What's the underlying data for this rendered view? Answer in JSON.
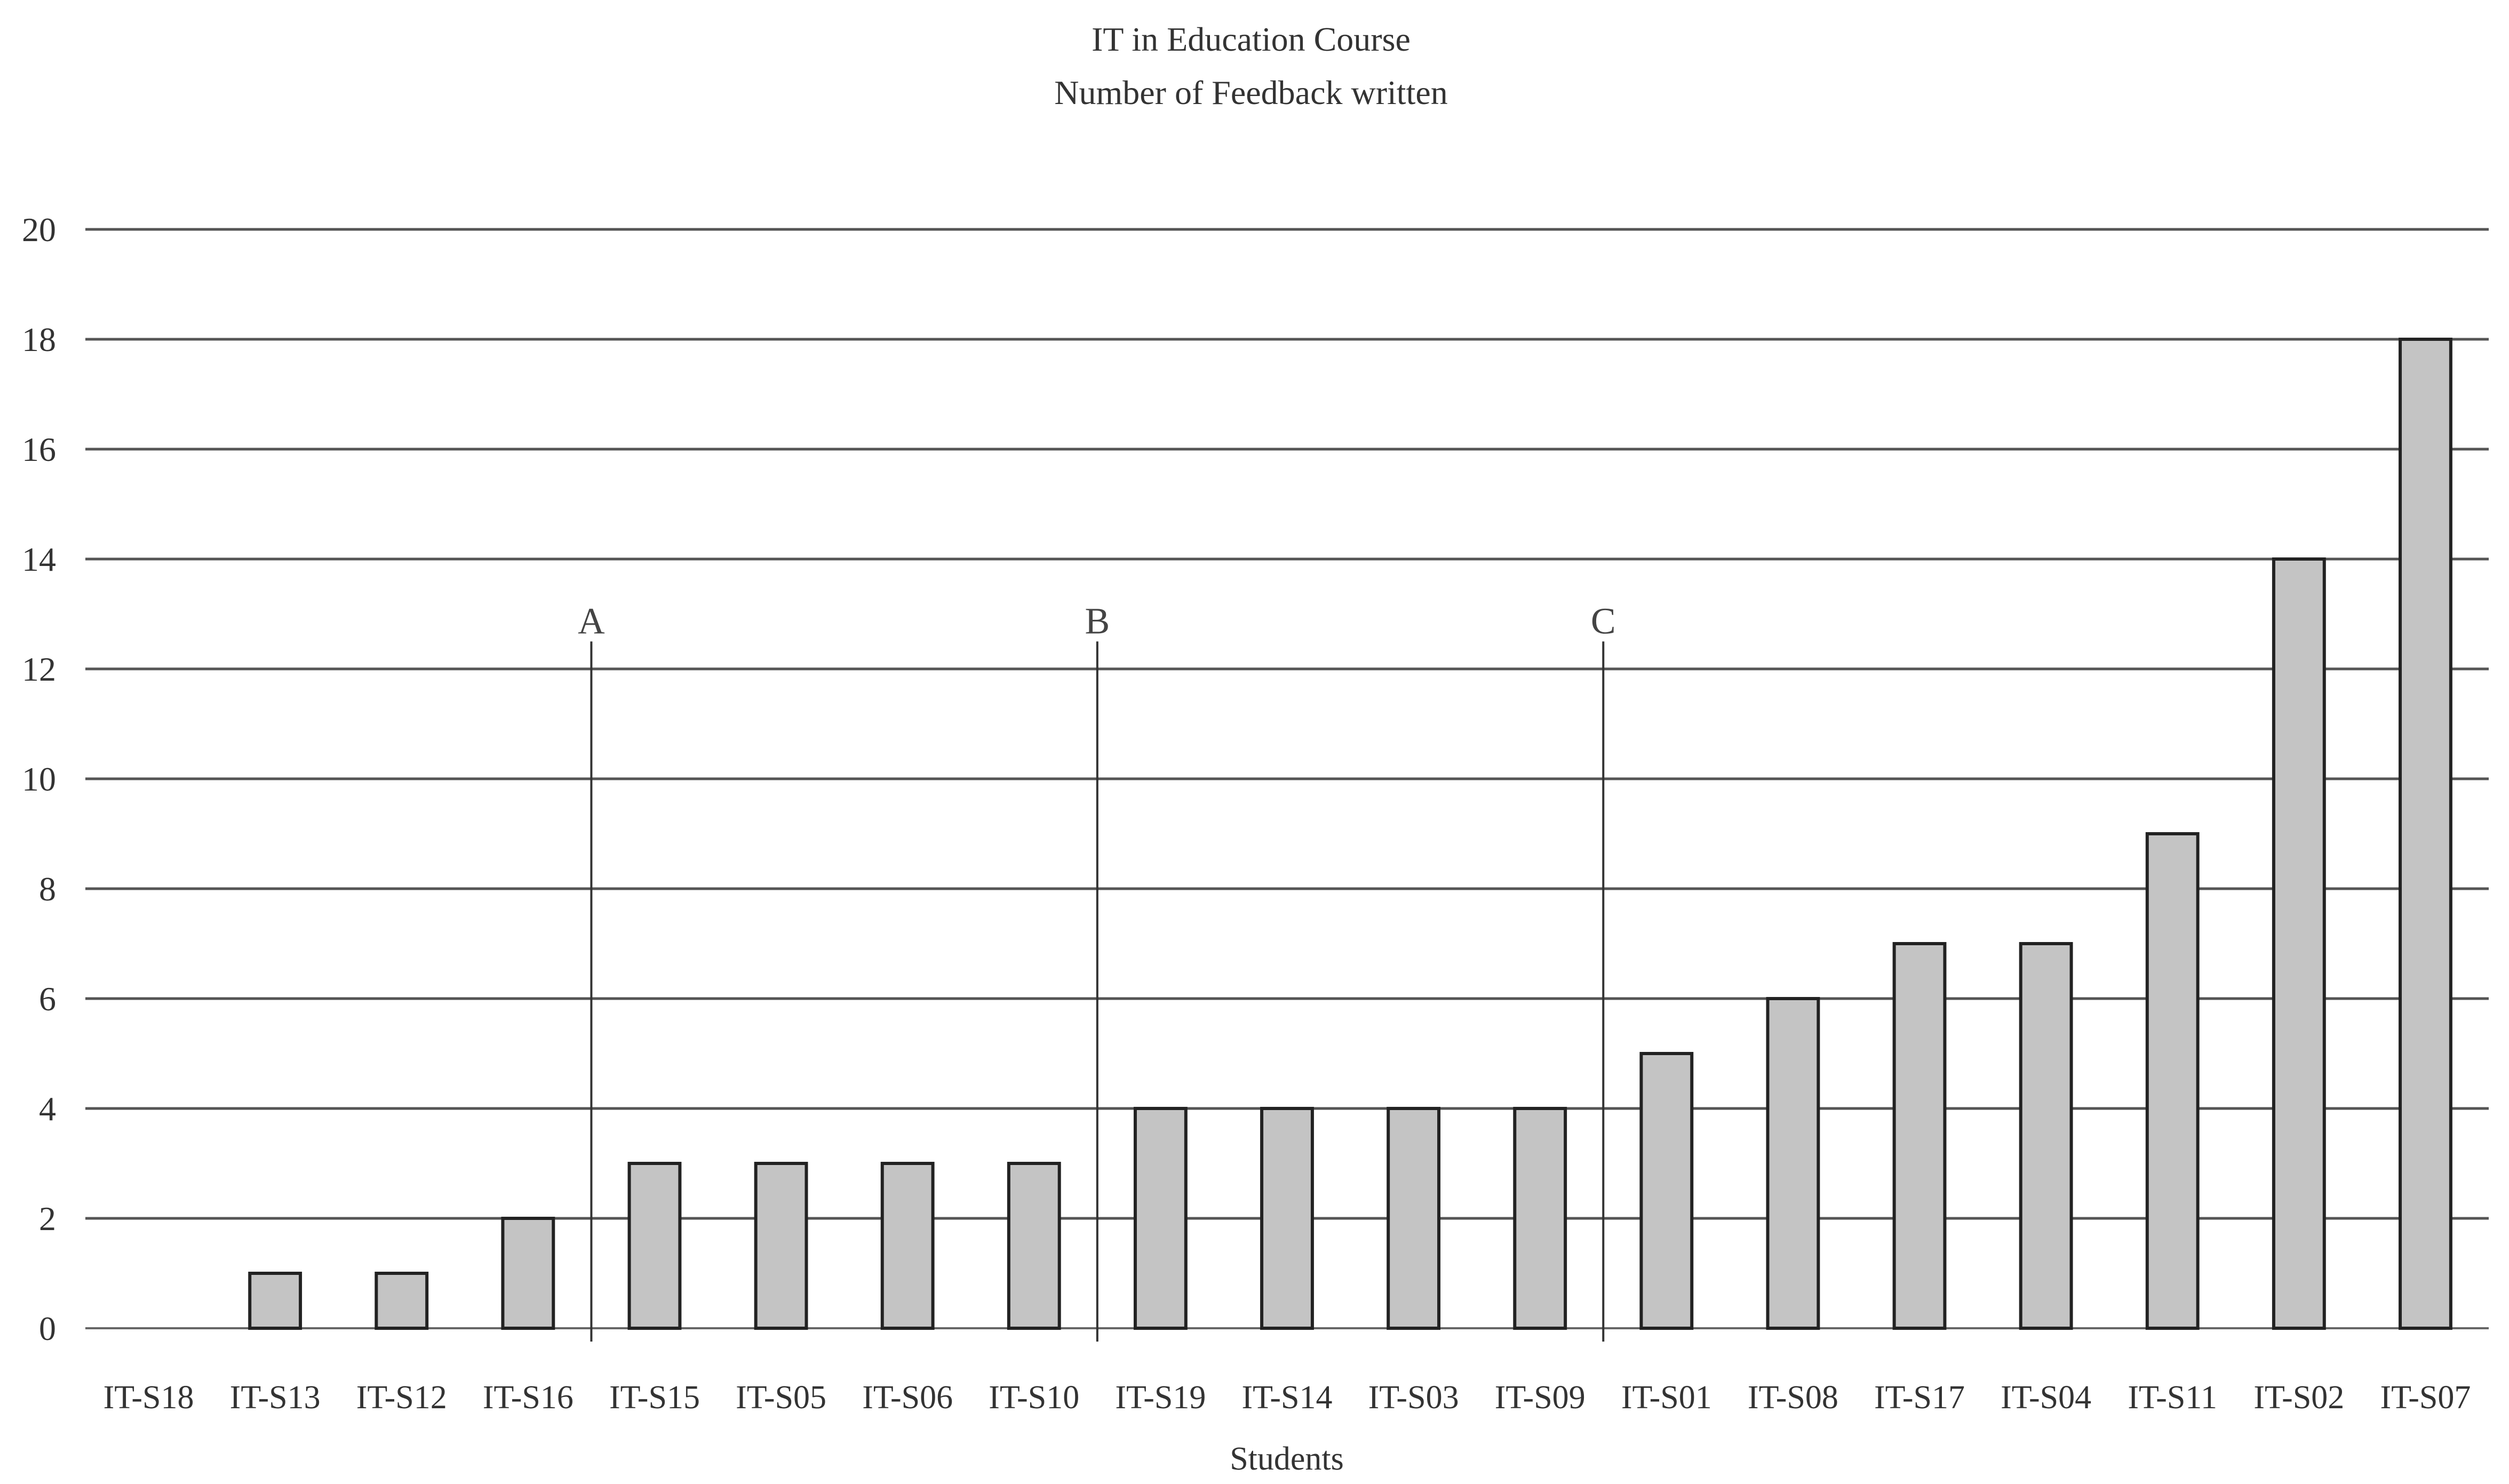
{
  "chart_data": {
    "type": "bar",
    "title": "IT in Education Course",
    "subtitle": "Number of Feedback written",
    "xlabel": "Students",
    "ylabel": "",
    "ylim": [
      0,
      20
    ],
    "yticks": [
      0,
      2,
      4,
      6,
      8,
      10,
      12,
      14,
      16,
      18,
      20
    ],
    "grid": true,
    "legend": "none",
    "bar_color": "#c4c4c4",
    "categories": [
      "IT-S18",
      "IT-S13",
      "IT-S12",
      "IT-S16",
      "IT-S15",
      "IT-S05",
      "IT-S06",
      "IT-S10",
      "IT-S19",
      "IT-S14",
      "IT-S03",
      "IT-S09",
      "IT-S01",
      "IT-S08",
      "IT-S17",
      "IT-S04",
      "IT-S11",
      "IT-S02",
      "IT-S07"
    ],
    "values": [
      0,
      1,
      1,
      2,
      3,
      3,
      3,
      3,
      4,
      4,
      4,
      4,
      5,
      6,
      7,
      7,
      9,
      14,
      18
    ],
    "annotations": [
      {
        "label": "A",
        "between": [
          "IT-S16",
          "IT-S15"
        ]
      },
      {
        "label": "B",
        "between": [
          "IT-S10",
          "IT-S19"
        ]
      },
      {
        "label": "C",
        "between": [
          "IT-S09",
          "IT-S01"
        ]
      }
    ]
  }
}
